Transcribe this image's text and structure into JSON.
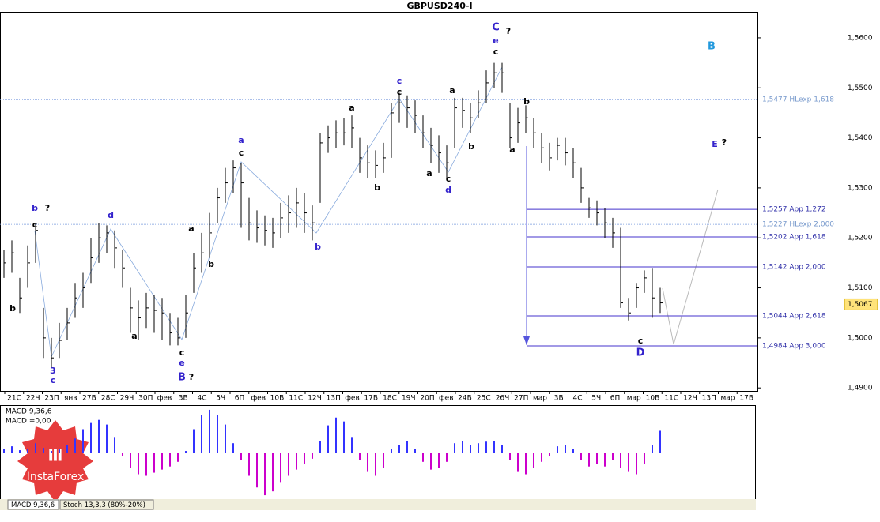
{
  "chart_data": {
    "type": "ohlc",
    "title": "GBPUSD240-I",
    "ylim": [
      1.4894,
      1.5652
    ],
    "yticks": [
      {
        "value": 1.56,
        "label": "1,5600"
      },
      {
        "value": 1.55,
        "label": "1,5500"
      },
      {
        "value": 1.54,
        "label": "1,5400"
      },
      {
        "value": 1.53,
        "label": "1,5300"
      },
      {
        "value": 1.52,
        "label": "1,5200"
      },
      {
        "value": 1.51,
        "label": "1,5100"
      },
      {
        "value": 1.5,
        "label": "1,5000"
      },
      {
        "value": 1.49,
        "label": "1,4900"
      }
    ],
    "categories": [
      "21С",
      "22Ч",
      "23П",
      "янв",
      "27В",
      "28С",
      "29Ч",
      "30П",
      "фев",
      "3В",
      "4С",
      "5Ч",
      "6П",
      "фев",
      "10В",
      "11С",
      "12Ч",
      "13П",
      "фев",
      "17В",
      "18С",
      "19Ч",
      "20П",
      "фев",
      "24В",
      "25С",
      "26Ч",
      "27П",
      "мар",
      "3В",
      "4С",
      "5Ч",
      "6П",
      "мар",
      "10В",
      "11С",
      "12Ч",
      "13П",
      "мар",
      "17В"
    ],
    "color": "#000000",
    "close": [
      1.515,
      1.517,
      1.508,
      1.515,
      1.5215,
      1.5,
      1.496,
      1.4995,
      1.503,
      1.508,
      1.51,
      1.516,
      1.52,
      1.521,
      1.518,
      1.514,
      1.506,
      1.504,
      1.506,
      1.5055,
      1.505,
      1.501,
      1.5,
      1.505,
      1.514,
      1.517,
      1.521,
      1.528,
      1.531,
      1.534,
      1.531,
      1.523,
      1.522,
      1.5215,
      1.521,
      1.524,
      1.525,
      1.527,
      1.525,
      1.523,
      1.539,
      1.54,
      1.541,
      1.541,
      1.542,
      1.536,
      1.535,
      1.5345,
      1.536,
      1.545,
      1.547,
      1.546,
      1.5445,
      1.541,
      1.5385,
      1.537,
      1.535,
      1.546,
      1.5455,
      1.544,
      1.547,
      1.551,
      1.553,
      1.553,
      1.54,
      1.543,
      1.544,
      1.541,
      1.538,
      1.536,
      1.5385,
      1.537,
      1.535,
      1.53,
      1.526,
      1.525,
      1.523,
      1.521,
      1.507,
      1.505,
      1.51,
      1.512,
      1.508,
      1.507
    ],
    "high": [
      1.5175,
      1.5195,
      1.512,
      1.5185,
      1.523,
      1.506,
      1.5,
      1.503,
      1.506,
      1.511,
      1.513,
      1.52,
      1.523,
      1.5225,
      1.5215,
      1.5175,
      1.51,
      1.5075,
      1.509,
      1.5085,
      1.508,
      1.505,
      1.504,
      1.5085,
      1.517,
      1.521,
      1.525,
      1.53,
      1.534,
      1.5355,
      1.535,
      1.528,
      1.5255,
      1.5245,
      1.524,
      1.527,
      1.5285,
      1.53,
      1.529,
      1.5265,
      1.541,
      1.5425,
      1.5435,
      1.544,
      1.5445,
      1.54,
      1.5385,
      1.5375,
      1.539,
      1.547,
      1.549,
      1.5485,
      1.5475,
      1.5445,
      1.542,
      1.5405,
      1.5385,
      1.548,
      1.548,
      1.547,
      1.5495,
      1.5535,
      1.555,
      1.555,
      1.547,
      1.546,
      1.5465,
      1.544,
      1.541,
      1.539,
      1.54,
      1.54,
      1.538,
      1.534,
      1.528,
      1.5275,
      1.526,
      1.524,
      1.522,
      1.508,
      1.511,
      1.5135,
      1.514,
      1.51
    ],
    "low": [
      1.512,
      1.513,
      1.505,
      1.51,
      1.515,
      1.496,
      1.494,
      1.496,
      1.4995,
      1.504,
      1.506,
      1.511,
      1.515,
      1.517,
      1.514,
      1.51,
      1.501,
      1.4995,
      1.502,
      1.501,
      1.4995,
      1.4985,
      1.4985,
      1.5,
      1.509,
      1.513,
      1.516,
      1.523,
      1.527,
      1.529,
      1.522,
      1.5195,
      1.519,
      1.5185,
      1.518,
      1.52,
      1.521,
      1.522,
      1.521,
      1.5195,
      1.527,
      1.537,
      1.538,
      1.5385,
      1.538,
      1.533,
      1.532,
      1.532,
      1.533,
      1.536,
      1.543,
      1.542,
      1.541,
      1.538,
      1.535,
      1.533,
      1.532,
      1.538,
      1.542,
      1.541,
      1.544,
      1.547,
      1.55,
      1.549,
      1.538,
      1.539,
      1.541,
      1.538,
      1.535,
      1.5335,
      1.5355,
      1.5345,
      1.532,
      1.527,
      1.524,
      1.5225,
      1.52,
      1.518,
      1.506,
      1.5035,
      1.506,
      1.509,
      1.504,
      1.505
    ],
    "current_price": {
      "value": 1.5067,
      "label": "1,5067"
    },
    "levels": [
      {
        "value": 1.5477,
        "label": "1,5477 HLexp 1,618"
      },
      {
        "value": 1.5257,
        "label": "1,5257 App 1,272"
      },
      {
        "value": 1.5227,
        "label": "1,5227 HLexp 2,000"
      },
      {
        "value": 1.5202,
        "label": "1,5202 App 1,618"
      },
      {
        "value": 1.5142,
        "label": "1,5142 App 2,000"
      },
      {
        "value": 1.5044,
        "label": "1,5044 App 2,618"
      },
      {
        "value": 1.4984,
        "label": "1,4984 App 3,000"
      }
    ],
    "annotations": [
      "b",
      "?",
      "c",
      "b",
      "3",
      "c",
      "d",
      "a",
      "c",
      "e",
      "B",
      "?",
      "a",
      "b",
      "a",
      "c",
      "b",
      "a",
      "b",
      "c",
      "c",
      "a",
      "c",
      "d",
      "a",
      "b",
      "C",
      "e",
      "c",
      "?",
      "b",
      "a",
      "c",
      "D",
      "B",
      "E",
      "?"
    ],
    "macd": {
      "name": "MACD 9,36,6",
      "value_text": "MACD =0,00",
      "ylim": [
        -0.006,
        0.006
      ],
      "up_color": "#3333ff",
      "down_color": "#cc00cc",
      "values": [
        0.0005,
        0.0008,
        0.0003,
        0.0005,
        0.0012,
        0.0006,
        0.0002,
        0.0004,
        0.001,
        0.0018,
        0.003,
        0.0038,
        0.0042,
        0.0036,
        0.002,
        -0.0005,
        -0.002,
        -0.0028,
        -0.003,
        -0.0026,
        -0.0022,
        -0.0018,
        -0.0012,
        0.0002,
        0.003,
        0.0048,
        0.0055,
        0.0048,
        0.0036,
        0.0012,
        -0.001,
        -0.003,
        -0.0045,
        -0.0055,
        -0.005,
        -0.0038,
        -0.003,
        -0.0022,
        -0.0015,
        -0.0008,
        0.0015,
        0.0035,
        0.0045,
        0.004,
        0.002,
        -0.001,
        -0.0025,
        -0.003,
        -0.002,
        0.0005,
        0.001,
        0.0015,
        0.0005,
        -0.0012,
        -0.0022,
        -0.002,
        -0.0012,
        0.0012,
        0.0015,
        0.001,
        0.0012,
        0.0014,
        0.0015,
        0.001,
        -0.001,
        -0.0025,
        -0.0028,
        -0.002,
        -0.0012,
        -0.0005,
        0.0008,
        0.001,
        0.0005,
        -0.001,
        -0.0018,
        -0.0015,
        -0.0018,
        -0.001,
        -0.002,
        -0.0025,
        -0.0028,
        -0.0015,
        0.001,
        0.0028
      ]
    },
    "tabs": [
      "MACD 9,36,6",
      "Stoch 13,3,3 (80%-20%)"
    ],
    "logo": "InstaForex"
  }
}
